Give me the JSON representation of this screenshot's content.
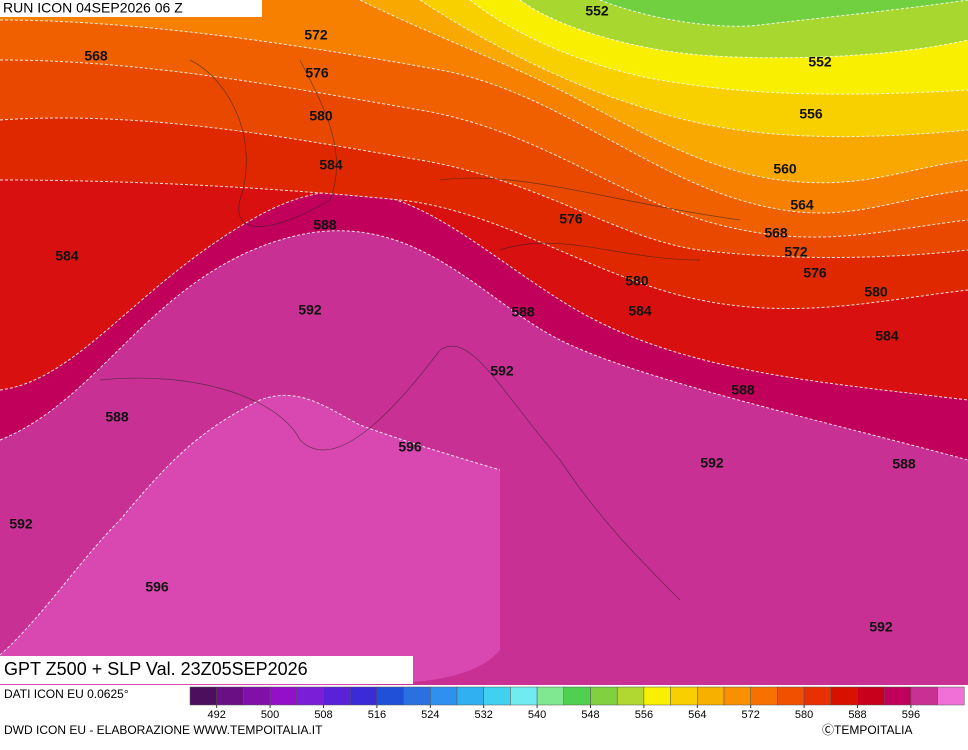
{
  "header": {
    "run": "RUN ICON 04SEP2026 06 Z"
  },
  "title": "GPT Z500 + SLP Val. 23Z05SEP2026",
  "footer": {
    "data_source": "DATI ICON EU 0.0625°",
    "credit": "DWD ICON EU - ELABORAZIONE WWW.TEMPOITALIA.IT",
    "copyright": "ⒸTEMPOITALIA"
  },
  "contour_labels": [
    552,
    552,
    568,
    572,
    576,
    580,
    584,
    556,
    560,
    564,
    568,
    572,
    576,
    576,
    580,
    580,
    584,
    584,
    584,
    588,
    588,
    588,
    588,
    588,
    592,
    592,
    592,
    592,
    592,
    596,
    596
  ],
  "colorbar": {
    "colors": [
      "#4b0f5e",
      "#6a1084",
      "#8010a8",
      "#9410c8",
      "#7a1ed8",
      "#5a22d8",
      "#3a2ad8",
      "#2050d8",
      "#2a70e0",
      "#3090f0",
      "#30b0f0",
      "#40d0f0",
      "#70ecf0",
      "#80e890",
      "#50d050",
      "#80d040",
      "#b0d830",
      "#f8f000",
      "#f8d000",
      "#f8b000",
      "#f89000",
      "#f87000",
      "#f05000",
      "#e83000",
      "#d81000",
      "#c8001c",
      "#c0005a",
      "#c83094",
      "#f070d8"
    ],
    "ticks": [
      492,
      500,
      508,
      516,
      524,
      532,
      540,
      548,
      556,
      564,
      572,
      580,
      588,
      596
    ]
  }
}
